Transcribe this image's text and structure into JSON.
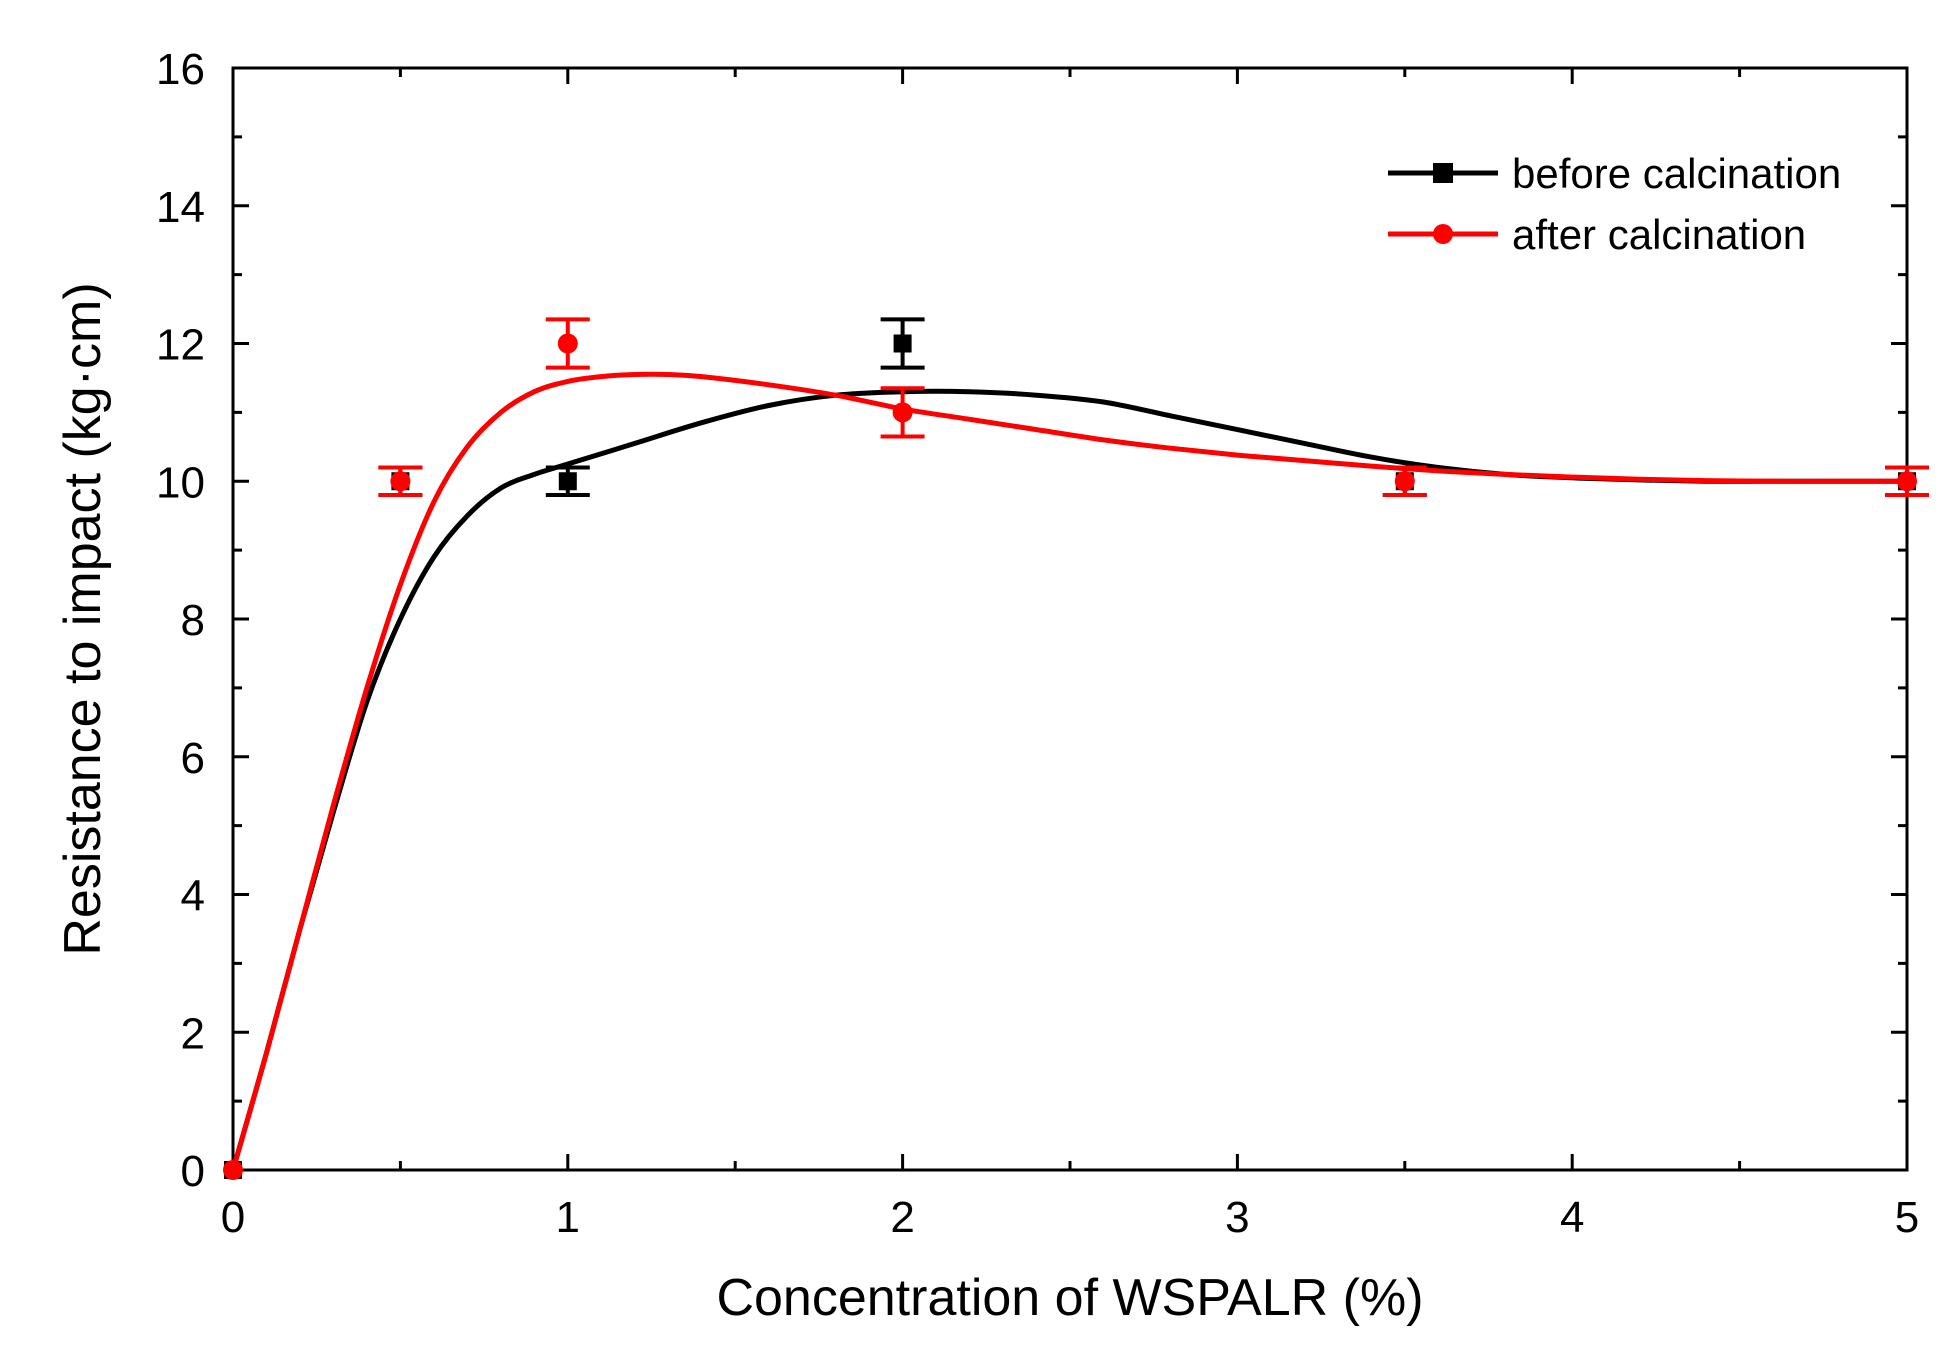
{
  "chart_data": {
    "type": "line",
    "title": "",
    "xlabel": "Concentration of WSPALR (%)",
    "ylabel": "Resistance to impact (kg·cm)",
    "xlim": [
      0,
      5
    ],
    "ylim": [
      0,
      16
    ],
    "x_ticks": [
      0,
      1,
      2,
      3,
      4,
      5
    ],
    "x_tick_labels": [
      "0",
      "1",
      "2",
      "3",
      "4",
      "5"
    ],
    "x_minor_ticks": [
      0.5,
      1.5,
      2.5,
      3.5,
      4.5
    ],
    "y_ticks": [
      0,
      2,
      4,
      6,
      8,
      10,
      12,
      14,
      16
    ],
    "y_tick_labels": [
      "0",
      "2",
      "4",
      "6",
      "8",
      "10",
      "12",
      "14",
      "16"
    ],
    "y_minor_ticks": [
      1,
      3,
      5,
      7,
      9,
      11,
      13,
      15
    ],
    "grid": false,
    "legend_position": "top-right",
    "series": [
      {
        "name": "before calcination",
        "color": "#000000",
        "marker": "square",
        "x": [
          0,
          0.5,
          1,
          2,
          3.5,
          5
        ],
        "y": [
          0,
          10,
          10,
          12,
          10,
          10
        ],
        "err": [
          0,
          0.2,
          0.2,
          0.35,
          0.2,
          0.2
        ],
        "fit_curve": {
          "x": [
            0,
            0.1,
            0.2,
            0.3,
            0.4,
            0.5,
            0.6,
            0.7,
            0.8,
            0.9,
            1.0,
            1.2,
            1.4,
            1.6,
            1.8,
            2.0,
            2.2,
            2.4,
            2.6,
            2.8,
            3.0,
            3.2,
            3.4,
            3.6,
            3.8,
            4.0,
            4.2,
            4.4,
            4.6,
            4.8,
            5.0
          ],
          "y": [
            0,
            1.7,
            3.5,
            5.2,
            6.8,
            8.0,
            8.9,
            9.5,
            9.9,
            10.1,
            10.25,
            10.55,
            10.85,
            11.1,
            11.25,
            11.3,
            11.3,
            11.25,
            11.15,
            10.95,
            10.75,
            10.55,
            10.35,
            10.2,
            10.1,
            10.05,
            10.02,
            10.0,
            10.0,
            10.0,
            10.0
          ]
        }
      },
      {
        "name": "after calcination",
        "color": "#ff0000",
        "marker": "circle",
        "x": [
          0,
          0.5,
          1,
          2,
          3.5,
          5
        ],
        "y": [
          0,
          10,
          12,
          11,
          10,
          10
        ],
        "err": [
          0,
          0.2,
          0.35,
          0.35,
          0.2,
          0.2
        ],
        "fit_curve": {
          "x": [
            0,
            0.1,
            0.2,
            0.3,
            0.4,
            0.5,
            0.6,
            0.7,
            0.8,
            0.9,
            1.0,
            1.1,
            1.2,
            1.3,
            1.4,
            1.6,
            1.8,
            2.0,
            2.2,
            2.4,
            2.6,
            2.8,
            3.0,
            3.2,
            3.4,
            3.6,
            3.8,
            4.0,
            4.2,
            4.4,
            4.6,
            4.8,
            5.0
          ],
          "y": [
            0,
            1.7,
            3.5,
            5.3,
            7.0,
            8.5,
            9.7,
            10.5,
            11.0,
            11.3,
            11.45,
            11.52,
            11.55,
            11.55,
            11.52,
            11.4,
            11.25,
            11.05,
            10.9,
            10.75,
            10.6,
            10.48,
            10.38,
            10.3,
            10.22,
            10.15,
            10.1,
            10.06,
            10.03,
            10.01,
            10.0,
            10.0,
            10.0
          ]
        }
      }
    ]
  }
}
